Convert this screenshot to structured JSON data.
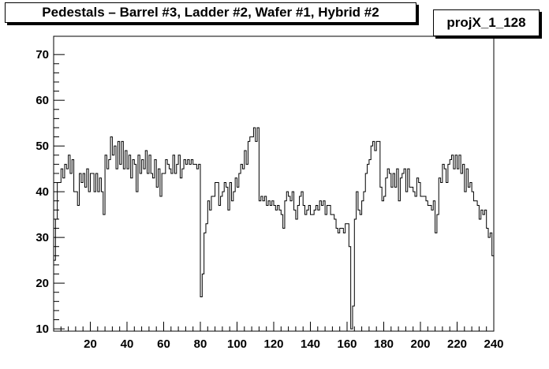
{
  "chart_data": {
    "type": "line",
    "title": "Pedestals – Barrel #3, Ladder #2, Wafer #1, Hybrid #2",
    "histogram_name": "projX_1_128",
    "xlabel": "",
    "ylabel": "",
    "xlim": [
      0,
      240
    ],
    "ylim": [
      9.5,
      74
    ],
    "xticks": [
      20,
      40,
      60,
      80,
      100,
      120,
      140,
      160,
      180,
      200,
      220,
      240
    ],
    "yticks": [
      10,
      20,
      30,
      40,
      50,
      60,
      70
    ],
    "grid": false,
    "legend": "none",
    "line_color": "#000000",
    "bin_width": 1,
    "values": [
      25,
      34,
      42,
      42,
      45,
      43,
      46,
      45,
      48,
      44,
      47,
      40,
      40,
      37,
      44,
      42,
      44,
      41,
      45,
      40,
      44,
      44,
      40,
      44,
      40,
      43,
      40,
      35,
      48,
      45,
      47,
      52,
      48,
      50,
      45,
      51,
      46,
      51,
      45,
      49,
      45,
      48,
      43,
      47,
      46,
      40,
      48,
      44,
      47,
      45,
      49,
      44,
      48,
      44,
      43,
      47,
      41,
      45,
      39,
      44,
      44,
      47,
      46,
      45,
      44,
      48,
      44,
      46,
      48,
      43,
      45,
      47,
      46,
      47,
      46,
      47,
      46,
      46,
      45,
      46,
      17,
      22,
      31,
      33,
      38,
      36,
      39,
      39,
      42,
      42,
      37,
      39,
      40,
      42,
      41,
      36,
      42,
      38,
      40,
      43,
      41,
      44,
      46,
      45,
      49,
      46,
      51,
      52,
      52,
      54,
      51,
      54,
      38,
      39,
      38,
      39,
      37,
      38,
      37,
      38,
      37,
      36,
      37,
      36,
      35,
      32,
      38,
      40,
      39,
      38,
      40,
      36,
      34,
      37,
      39,
      40,
      37,
      35,
      36,
      37,
      35,
      35,
      36,
      37,
      36,
      38,
      37,
      38,
      35,
      37,
      37,
      35,
      35,
      34,
      32,
      31,
      32,
      32,
      31,
      33,
      33,
      28,
      10,
      15,
      34,
      40,
      36,
      35,
      38,
      40,
      44,
      46,
      47,
      50,
      51,
      49,
      51,
      51,
      41,
      38,
      39,
      43,
      45,
      44,
      41,
      44,
      41,
      45,
      38,
      43,
      44,
      45,
      40,
      45,
      41,
      41,
      40,
      39,
      43,
      42,
      39,
      39,
      39,
      38,
      37,
      37,
      36,
      38,
      31,
      35,
      43,
      42,
      46,
      45,
      42,
      46,
      47,
      48,
      45,
      48,
      45,
      48,
      44,
      46,
      40,
      45,
      41,
      42,
      40,
      38,
      38,
      37,
      34,
      36,
      35,
      36,
      32,
      30,
      31,
      26
    ]
  }
}
